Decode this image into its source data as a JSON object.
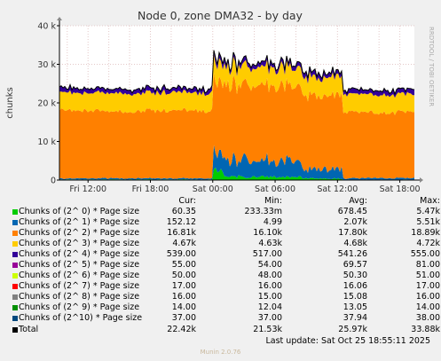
{
  "chart_data": {
    "type": "area",
    "title": "Node 0, zone DMA32 - by day",
    "ylabel": "chunks",
    "ylim": [
      0,
      40000
    ],
    "y_ticks": [
      {
        "value": 0,
        "label": "0"
      },
      {
        "value": 10000,
        "label": "10 k"
      },
      {
        "value": 20000,
        "label": "20 k"
      },
      {
        "value": 30000,
        "label": "30 k"
      },
      {
        "value": 40000,
        "label": "40 k"
      }
    ],
    "x_ticks": [
      "Fri 12:00",
      "Fri 18:00",
      "Sat 00:00",
      "Sat 06:00",
      "Sat 12:00",
      "Sat 18:00"
    ],
    "stacked": true,
    "grid": true,
    "side_label": "RRDTOOL / TOBI OETIKER",
    "columns": {
      "cur": "Cur:",
      "min": "Min:",
      "avg": "Avg:",
      "max": "Max:"
    },
    "series": [
      {
        "name": "Chunks of (2^ 0) * Page size",
        "color": "#00cc00",
        "cur": "60.35",
        "min": "233.33m",
        "avg": "678.45",
        "max": "5.47k"
      },
      {
        "name": "Chunks of (2^ 1) * Page size",
        "color": "#0066b3",
        "cur": "152.12",
        "min": "4.99",
        "avg": "2.07k",
        "max": "5.51k"
      },
      {
        "name": "Chunks of (2^ 2) * Page size",
        "color": "#ff8000",
        "cur": "16.81k",
        "min": "16.10k",
        "avg": "17.80k",
        "max": "18.89k"
      },
      {
        "name": "Chunks of (2^ 3) * Page size",
        "color": "#ffcc00",
        "cur": "4.67k",
        "min": "4.63k",
        "avg": "4.68k",
        "max": "4.72k"
      },
      {
        "name": "Chunks of (2^ 4) * Page size",
        "color": "#330099",
        "cur": "539.00",
        "min": "517.00",
        "avg": "541.26",
        "max": "555.00"
      },
      {
        "name": "Chunks of (2^ 5) * Page size",
        "color": "#990099",
        "cur": "55.00",
        "min": "54.00",
        "avg": "69.57",
        "max": "81.00"
      },
      {
        "name": "Chunks of (2^ 6) * Page size",
        "color": "#ccff00",
        "cur": "50.00",
        "min": "48.00",
        "avg": "50.30",
        "max": "51.00"
      },
      {
        "name": "Chunks of (2^ 7) * Page size",
        "color": "#ff0000",
        "cur": "17.00",
        "min": "16.00",
        "avg": "16.06",
        "max": "17.00"
      },
      {
        "name": "Chunks of (2^ 8) * Page size",
        "color": "#808080",
        "cur": "16.00",
        "min": "15.00",
        "avg": "15.08",
        "max": "16.00"
      },
      {
        "name": "Chunks of (2^ 9) * Page size",
        "color": "#008f00",
        "cur": "14.00",
        "min": "12.04",
        "avg": "13.05",
        "max": "14.00"
      },
      {
        "name": "Chunks of (2^10) * Page size",
        "color": "#00487d",
        "cur": "37.00",
        "min": "37.00",
        "avg": "37.94",
        "max": "38.00"
      }
    ],
    "total": {
      "name": "Total",
      "color": "#000000",
      "cur": "22.42k",
      "min": "21.53k",
      "avg": "25.97k",
      "max": "33.88k"
    },
    "segments": [
      {
        "from": "start",
        "to": "Sat 00:00",
        "o0": 150,
        "o1": 300,
        "o2": 17500,
        "o3": 4650
      },
      {
        "from": "Sat 00:00",
        "to": "Sat 01:00",
        "o0": 2500,
        "o1": 5000,
        "o2": 18500,
        "o3": 4700
      },
      {
        "from": "Sat 01:00",
        "to": "Sat 08:30",
        "o0": 900,
        "o1": 4500,
        "o2": 19500,
        "o3": 4700
      },
      {
        "from": "Sat 08:30",
        "to": "Sat 12:30",
        "o0": 400,
        "o1": 2500,
        "o2": 19000,
        "o3": 4700
      },
      {
        "from": "Sat 12:30",
        "to": "end",
        "o0": 100,
        "o1": 400,
        "o2": 17000,
        "o3": 4680
      }
    ]
  },
  "footer": {
    "last_update": "Last update: Sat Oct 25 18:55:11 2025",
    "version": "Munin 2.0.76"
  }
}
